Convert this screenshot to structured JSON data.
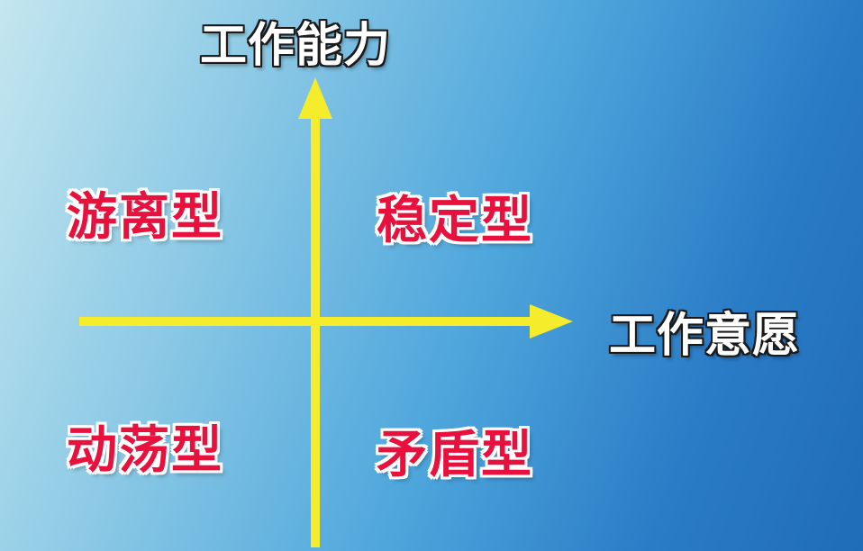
{
  "axes": {
    "y_label": "工作能力",
    "x_label": "工作意愿"
  },
  "quadrants": {
    "top_left": "游离型",
    "top_right": "稳定型",
    "bottom_left": "动荡型",
    "bottom_right": "矛盾型"
  },
  "colors": {
    "arrow": "#f5ec2c",
    "quadrant_text": "#e8113d",
    "axis_text": "#ffffff"
  }
}
